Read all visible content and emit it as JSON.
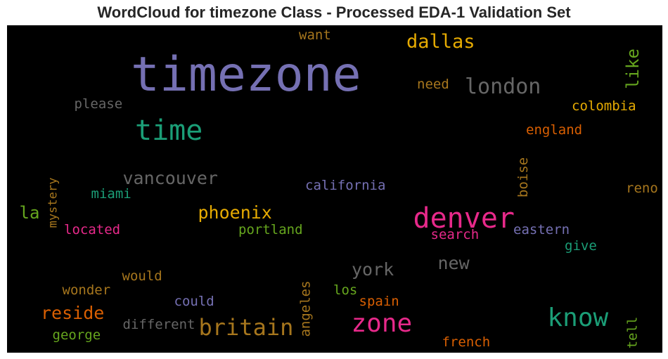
{
  "chart_data": {
    "type": "wordcloud",
    "title": "WordCloud for timezone Class - Processed EDA-1 Validation Set",
    "background": "#000000",
    "words": [
      {
        "text": "timezone",
        "color": "#7570b3",
        "orientation": "horizontal"
      },
      {
        "text": "denver",
        "color": "#e7298a",
        "orientation": "horizontal"
      },
      {
        "text": "time",
        "color": "#1b9e77",
        "orientation": "horizontal"
      },
      {
        "text": "know",
        "color": "#1b9e77",
        "orientation": "horizontal"
      },
      {
        "text": "zone",
        "color": "#e7298a",
        "orientation": "horizontal"
      },
      {
        "text": "britain",
        "color": "#a6761d",
        "orientation": "horizontal"
      },
      {
        "text": "london",
        "color": "#666666",
        "orientation": "horizontal"
      },
      {
        "text": "dallas",
        "color": "#e6ab02",
        "orientation": "horizontal"
      },
      {
        "text": "vancouver",
        "color": "#666666",
        "orientation": "horizontal"
      },
      {
        "text": "phoenix",
        "color": "#e6ab02",
        "orientation": "horizontal"
      },
      {
        "text": "reside",
        "color": "#d95f02",
        "orientation": "horizontal"
      },
      {
        "text": "york",
        "color": "#666666",
        "orientation": "horizontal"
      },
      {
        "text": "new",
        "color": "#666666",
        "orientation": "horizontal"
      },
      {
        "text": "like",
        "color": "#66a61e",
        "orientation": "vertical"
      },
      {
        "text": "la",
        "color": "#66a61e",
        "orientation": "horizontal"
      },
      {
        "text": "colombia",
        "color": "#e6ab02",
        "orientation": "horizontal"
      },
      {
        "text": "england",
        "color": "#d95f02",
        "orientation": "horizontal"
      },
      {
        "text": "california",
        "color": "#7570b3",
        "orientation": "horizontal"
      },
      {
        "text": "need",
        "color": "#a6761d",
        "orientation": "horizontal"
      },
      {
        "text": "please",
        "color": "#666666",
        "orientation": "horizontal"
      },
      {
        "text": "want",
        "color": "#a6761d",
        "orientation": "horizontal"
      },
      {
        "text": "miami",
        "color": "#1b9e77",
        "orientation": "horizontal"
      },
      {
        "text": "mystery",
        "color": "#a6761d",
        "orientation": "vertical"
      },
      {
        "text": "located",
        "color": "#e7298a",
        "orientation": "horizontal"
      },
      {
        "text": "portland",
        "color": "#66a61e",
        "orientation": "horizontal"
      },
      {
        "text": "search",
        "color": "#e7298a",
        "orientation": "horizontal"
      },
      {
        "text": "eastern",
        "color": "#7570b3",
        "orientation": "horizontal"
      },
      {
        "text": "boise",
        "color": "#a6761d",
        "orientation": "vertical"
      },
      {
        "text": "reno",
        "color": "#a6761d",
        "orientation": "horizontal"
      },
      {
        "text": "give",
        "color": "#1b9e77",
        "orientation": "horizontal"
      },
      {
        "text": "would",
        "color": "#a6761d",
        "orientation": "horizontal"
      },
      {
        "text": "wonder",
        "color": "#a6761d",
        "orientation": "horizontal"
      },
      {
        "text": "could",
        "color": "#7570b3",
        "orientation": "horizontal"
      },
      {
        "text": "different",
        "color": "#666666",
        "orientation": "horizontal"
      },
      {
        "text": "george",
        "color": "#66a61e",
        "orientation": "horizontal"
      },
      {
        "text": "angeles",
        "color": "#a6761d",
        "orientation": "vertical"
      },
      {
        "text": "los",
        "color": "#66a61e",
        "orientation": "horizontal"
      },
      {
        "text": "spain",
        "color": "#d95f02",
        "orientation": "horizontal"
      },
      {
        "text": "french",
        "color": "#d95f02",
        "orientation": "horizontal"
      },
      {
        "text": "tell",
        "color": "#66a61e",
        "orientation": "vertical"
      }
    ]
  }
}
